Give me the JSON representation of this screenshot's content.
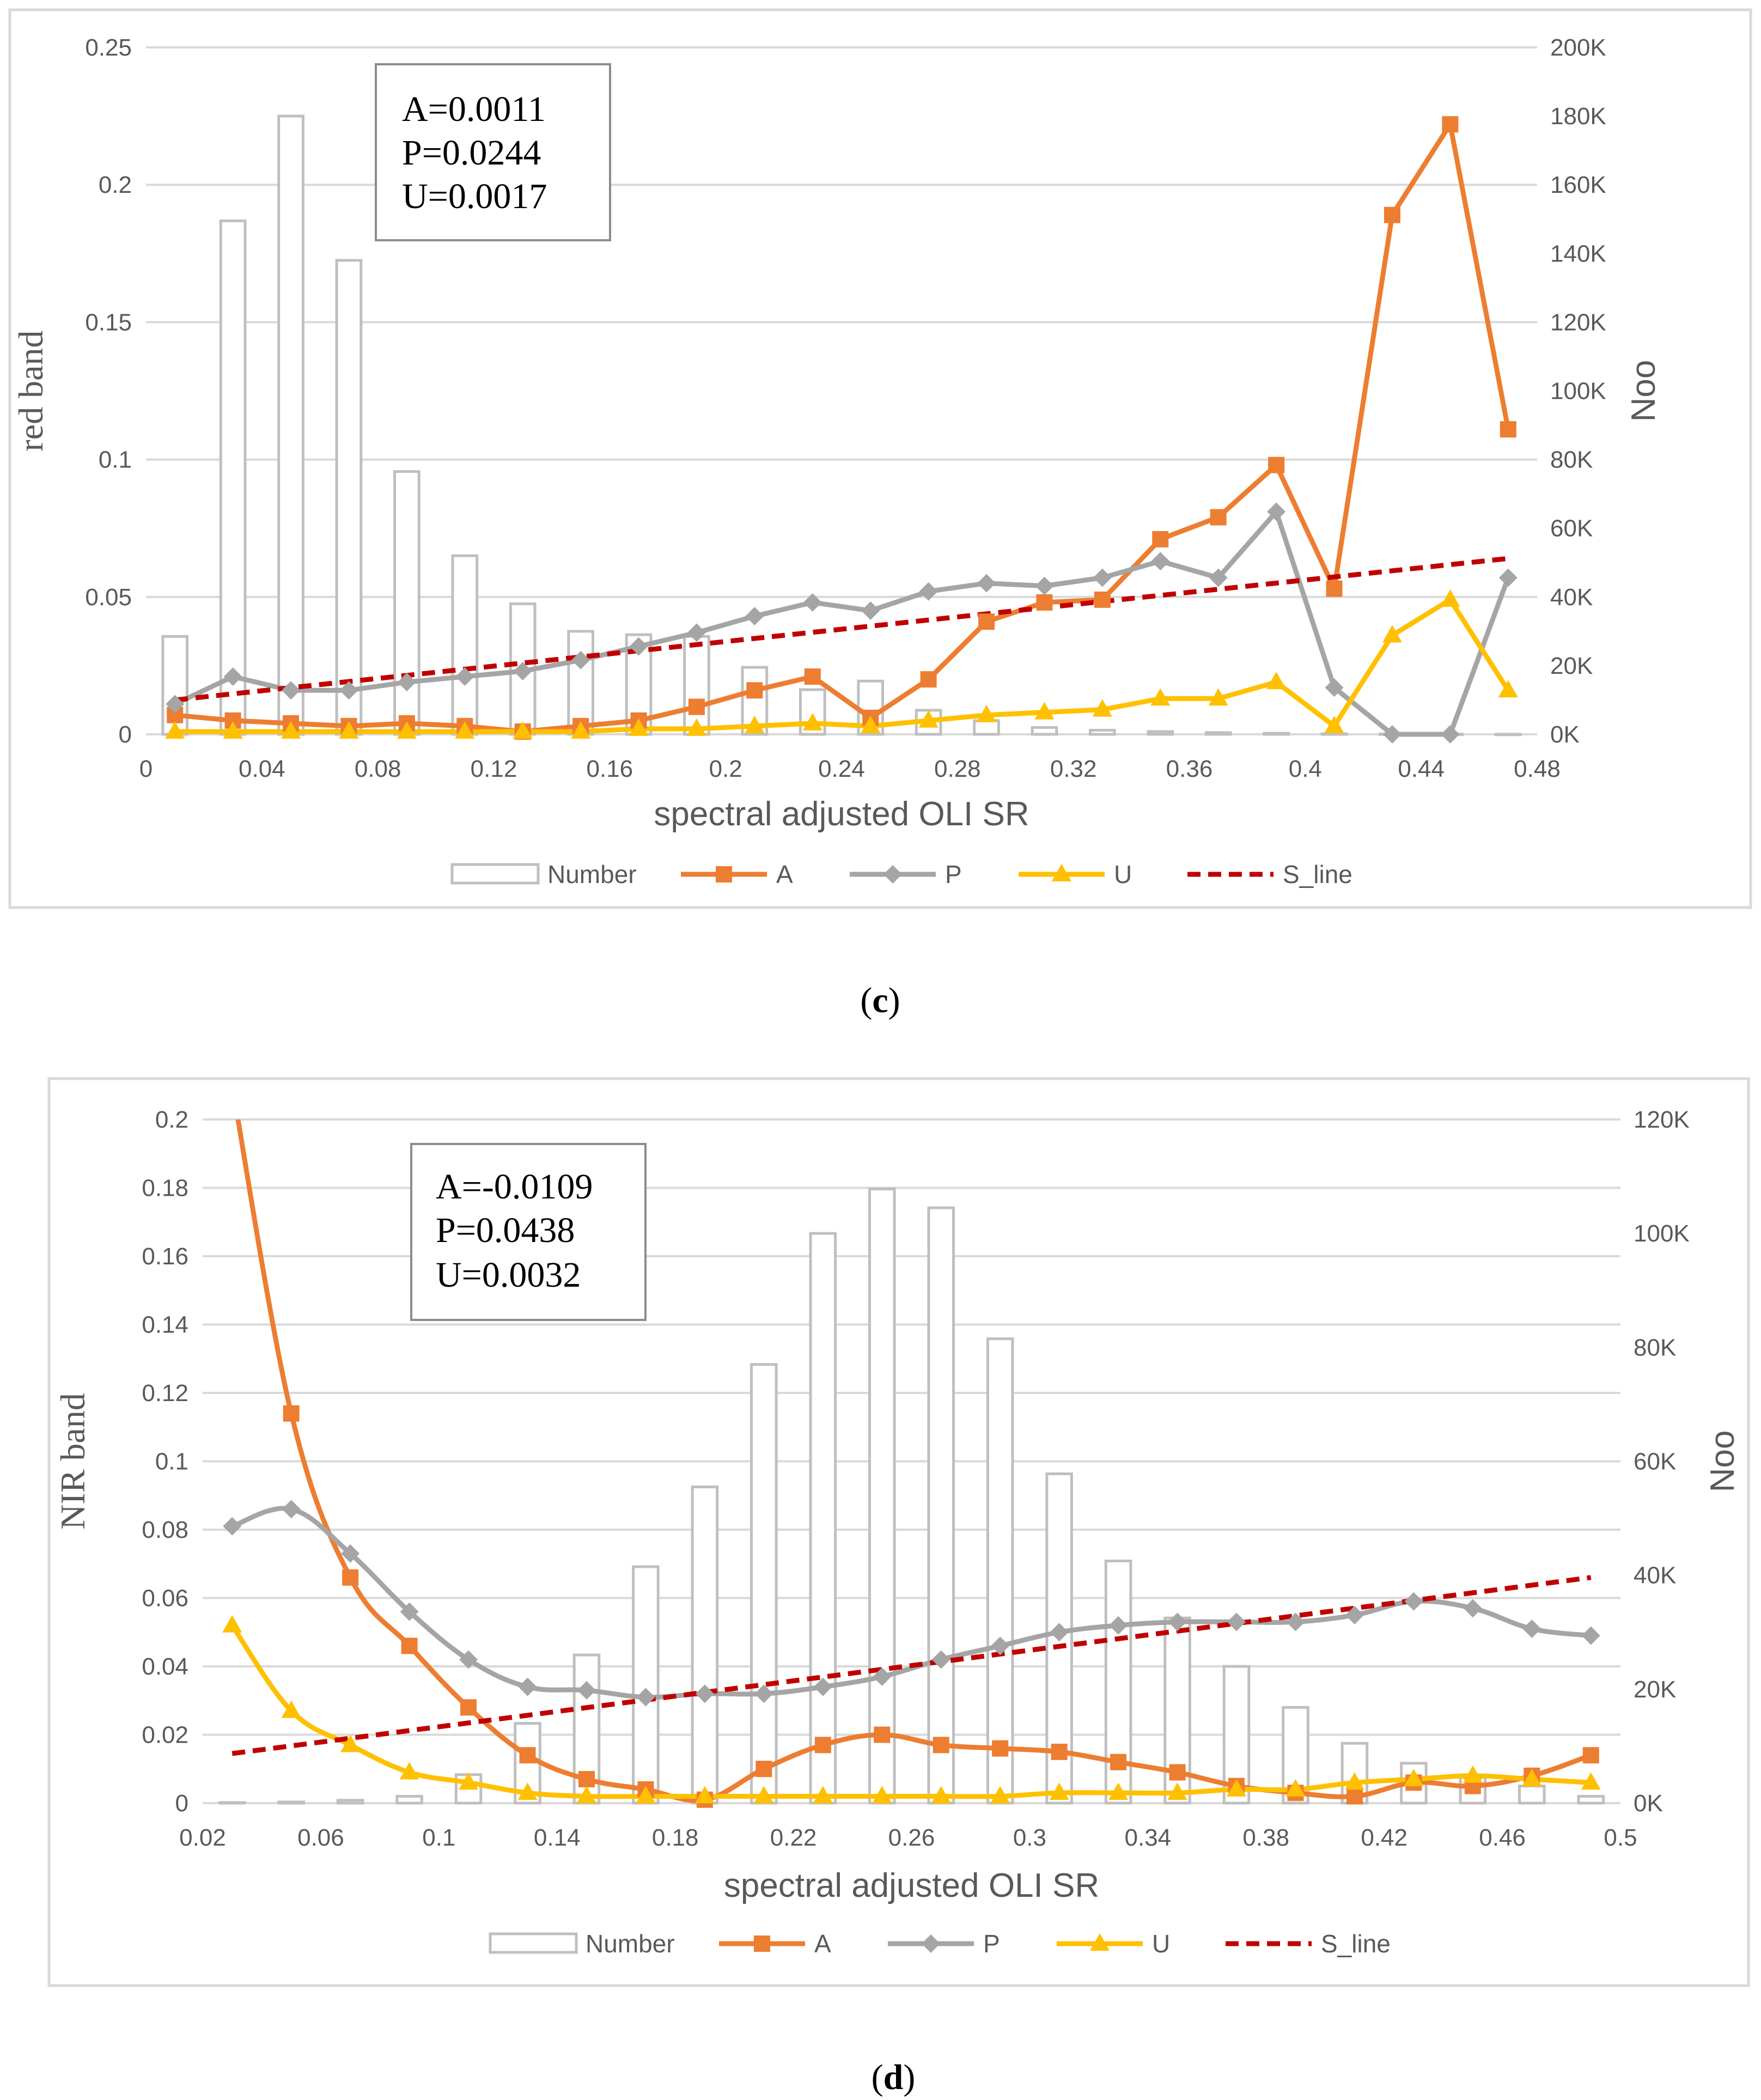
{
  "colors": {
    "A": "#ED7D31",
    "P": "#A5A5A5",
    "U": "#FFC000",
    "S_line": "#C00000",
    "Number": "#BFBFBF"
  },
  "chart_data": [
    {
      "id": "c",
      "type": "bar+line",
      "panel_label": "c",
      "xlabel": "spectral adjusted OLI SR",
      "ylabel": "red band",
      "y2label": "Noo",
      "x_range": [
        0,
        0.48
      ],
      "x_ticks": [
        "0",
        "0.04",
        "0.08",
        "0.12",
        "0.16",
        "0.2",
        "0.24",
        "0.28",
        "0.32",
        "0.36",
        "0.4",
        "0.44",
        "0.48"
      ],
      "y_range": [
        0,
        0.25
      ],
      "y_ticks": [
        "0",
        "0.05",
        "0.1",
        "0.15",
        "0.2",
        "0.25"
      ],
      "y2_range": [
        0,
        200000
      ],
      "y2_ticks": [
        "0K",
        "20K",
        "40K",
        "60K",
        "80K",
        "100K",
        "120K",
        "140K",
        "160K",
        "180K",
        "200K"
      ],
      "stats": [
        "A=0.0011",
        "P=0.0244",
        "U=0.0017"
      ],
      "legend": [
        "Number",
        "A",
        "P",
        "U",
        "S_line"
      ],
      "x": [
        0.01,
        0.03,
        0.05,
        0.07,
        0.09,
        0.11,
        0.13,
        0.15,
        0.17,
        0.19,
        0.21,
        0.23,
        0.25,
        0.27,
        0.29,
        0.31,
        0.33,
        0.35,
        0.37,
        0.39,
        0.41,
        0.43,
        0.45,
        0.47
      ],
      "series": [
        {
          "name": "Number",
          "kind": "bar",
          "axis": "y2",
          "values": [
            28500,
            149500,
            180000,
            138000,
            76500,
            52000,
            38000,
            30000,
            29000,
            28500,
            19500,
            13000,
            15500,
            7000,
            4000,
            2000,
            1200,
            800,
            500,
            300,
            150,
            100,
            50,
            30
          ]
        },
        {
          "name": "A",
          "kind": "line",
          "marker": "square",
          "smooth": false,
          "values": [
            0.007,
            0.005,
            0.004,
            0.003,
            0.004,
            0.003,
            0.001,
            0.003,
            0.005,
            0.01,
            0.016,
            0.021,
            0.006,
            0.02,
            0.041,
            0.048,
            0.049,
            0.071,
            0.079,
            0.098,
            0.053,
            0.189,
            0.222,
            0.111
          ]
        },
        {
          "name": "P",
          "kind": "line",
          "marker": "diamond",
          "smooth": false,
          "values": [
            0.011,
            0.021,
            0.016,
            0.016,
            0.019,
            0.021,
            0.023,
            0.027,
            0.032,
            0.037,
            0.043,
            0.048,
            0.045,
            0.052,
            0.055,
            0.054,
            0.057,
            0.063,
            0.057,
            0.081,
            0.017,
            0.0,
            0.0,
            0.057
          ]
        },
        {
          "name": "U",
          "kind": "line",
          "marker": "triangle",
          "smooth": false,
          "values": [
            0.001,
            0.001,
            0.001,
            0.001,
            0.001,
            0.001,
            0.001,
            0.001,
            0.002,
            0.002,
            0.003,
            0.004,
            0.003,
            0.005,
            0.007,
            0.008,
            0.009,
            0.013,
            0.013,
            0.019,
            0.003,
            0.036,
            0.049,
            0.016
          ]
        },
        {
          "name": "S_line",
          "kind": "dashed",
          "x": [
            0.01,
            0.47
          ],
          "values": [
            0.0125,
            0.064
          ]
        }
      ]
    },
    {
      "id": "d",
      "type": "bar+line",
      "panel_label": "d",
      "xlabel": "spectral adjusted OLI SR",
      "ylabel": "NIR band",
      "y2label": "Noo",
      "x_range": [
        0.02,
        0.5
      ],
      "x_ticks": [
        "0.02",
        "0.06",
        "0.1",
        "0.14",
        "0.18",
        "0.22",
        "0.26",
        "0.3",
        "0.34",
        "0.38",
        "0.42",
        "0.46",
        "0.5"
      ],
      "y_range": [
        0,
        0.2
      ],
      "y_ticks": [
        "0",
        "0.02",
        "0.04",
        "0.06",
        "0.08",
        "0.1",
        "0.12",
        "0.14",
        "0.16",
        "0.18",
        "0.2"
      ],
      "y2_range": [
        0,
        120000
      ],
      "y2_ticks": [
        "0K",
        "20K",
        "40K",
        "60K",
        "80K",
        "100K",
        "120K"
      ],
      "stats": [
        "A=-0.0109",
        "P=0.0438",
        "U=0.0032"
      ],
      "legend": [
        "Number",
        "A",
        "P",
        "U",
        "S_line"
      ],
      "x": [
        0.03,
        0.05,
        0.07,
        0.09,
        0.11,
        0.13,
        0.15,
        0.17,
        0.19,
        0.21,
        0.23,
        0.25,
        0.27,
        0.29,
        0.31,
        0.33,
        0.35,
        0.37,
        0.39,
        0.41,
        0.43,
        0.45,
        0.47,
        0.49
      ],
      "series": [
        {
          "name": "Number",
          "kind": "bar",
          "axis": "y2",
          "values": [
            100,
            200,
            500,
            1200,
            5000,
            14000,
            26000,
            41500,
            55500,
            77000,
            100000,
            107800,
            104500,
            81500,
            57800,
            42500,
            32500,
            24000,
            16800,
            10500,
            7000,
            4500,
            3000,
            1200
          ]
        },
        {
          "name": "A",
          "kind": "line",
          "marker": "square",
          "smooth": true,
          "values": [
            0.21,
            0.114,
            0.066,
            0.046,
            0.028,
            0.014,
            0.007,
            0.004,
            0.001,
            0.01,
            0.017,
            0.02,
            0.017,
            0.016,
            0.015,
            0.012,
            0.009,
            0.005,
            0.003,
            0.002,
            0.006,
            0.005,
            0.008,
            0.014
          ]
        },
        {
          "name": "P",
          "kind": "line",
          "marker": "diamond",
          "smooth": true,
          "values": [
            0.081,
            0.086,
            0.073,
            0.056,
            0.042,
            0.034,
            0.033,
            0.031,
            0.032,
            0.032,
            0.034,
            0.037,
            0.042,
            0.046,
            0.05,
            0.052,
            0.053,
            0.053,
            0.053,
            0.055,
            0.059,
            0.057,
            0.051,
            0.049
          ]
        },
        {
          "name": "U",
          "kind": "line",
          "marker": "triangle",
          "smooth": true,
          "values": [
            0.052,
            0.027,
            0.017,
            0.009,
            0.006,
            0.003,
            0.002,
            0.002,
            0.002,
            0.002,
            0.002,
            0.002,
            0.002,
            0.002,
            0.003,
            0.003,
            0.003,
            0.004,
            0.004,
            0.006,
            0.007,
            0.008,
            0.007,
            0.006
          ]
        },
        {
          "name": "S_line",
          "kind": "dashed",
          "x": [
            0.03,
            0.49
          ],
          "values": [
            0.0145,
            0.066
          ]
        }
      ]
    }
  ]
}
